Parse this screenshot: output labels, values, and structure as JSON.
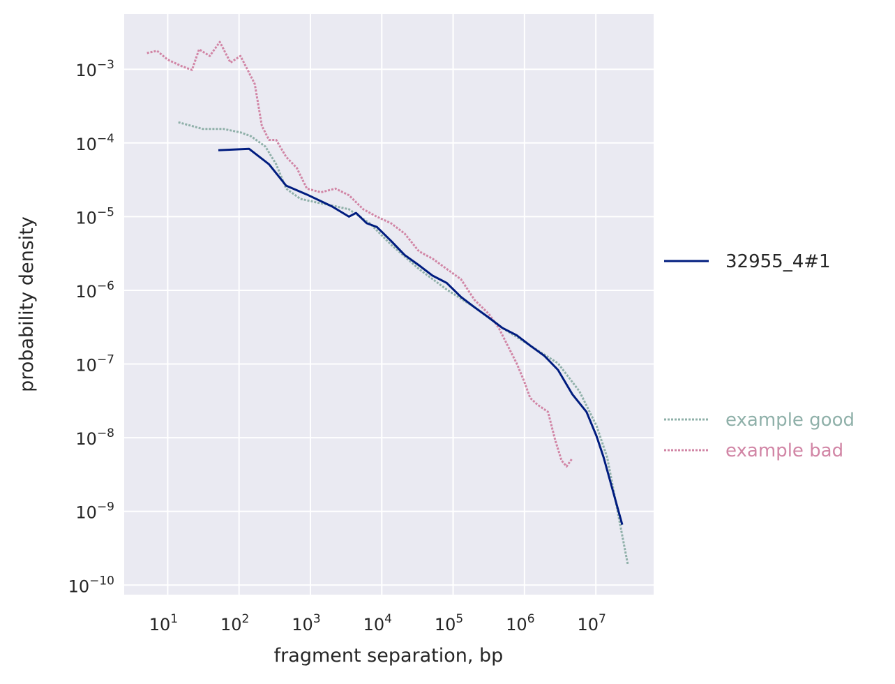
{
  "chart_data": {
    "type": "line",
    "title": "",
    "xlabel": "fragment separation, bp",
    "ylabel": "probability density",
    "x_scale": "log",
    "y_scale": "log",
    "values_note": "points given as log10 exponents",
    "xlim_log10": [
      0.39,
      7.81
    ],
    "ylim_log10": [
      -10.13,
      -2.25
    ],
    "grid": true,
    "x_ticks": [
      {
        "base": "10",
        "exp": "1"
      },
      {
        "base": "10",
        "exp": "2"
      },
      {
        "base": "10",
        "exp": "3"
      },
      {
        "base": "10",
        "exp": "4"
      },
      {
        "base": "10",
        "exp": "5"
      },
      {
        "base": "10",
        "exp": "6"
      },
      {
        "base": "10",
        "exp": "7"
      }
    ],
    "y_ticks": [
      {
        "base": "10",
        "exp": "−3"
      },
      {
        "base": "10",
        "exp": "−4"
      },
      {
        "base": "10",
        "exp": "−5"
      },
      {
        "base": "10",
        "exp": "−6"
      },
      {
        "base": "10",
        "exp": "−7"
      },
      {
        "base": "10",
        "exp": "−8"
      },
      {
        "base": "10",
        "exp": "−9"
      },
      {
        "base": "10",
        "exp": "−10"
      }
    ],
    "x_tick_values_log10": [
      1,
      2,
      3,
      4,
      5,
      6,
      7
    ],
    "y_tick_values_log10": [
      -3,
      -4,
      -5,
      -6,
      -7,
      -8,
      -9,
      -10
    ],
    "legend_placement": "right",
    "series": [
      {
        "name": "32955_4#1",
        "style": "solid",
        "color": "#001c7f",
        "log10_x": [
          1.71,
          2.14,
          2.42,
          2.66,
          2.95,
          3.3,
          3.54,
          3.64,
          3.79,
          3.93,
          4.13,
          4.32,
          4.52,
          4.71,
          4.91,
          5.11,
          5.3,
          5.5,
          5.69,
          5.89,
          6.08,
          6.28,
          6.47,
          6.67,
          6.87,
          7.01,
          7.11,
          7.37
        ],
        "log10_y": [
          -4.1,
          -4.08,
          -4.29,
          -4.58,
          -4.7,
          -4.86,
          -5.0,
          -4.95,
          -5.09,
          -5.14,
          -5.33,
          -5.52,
          -5.66,
          -5.8,
          -5.9,
          -6.09,
          -6.23,
          -6.37,
          -6.51,
          -6.61,
          -6.75,
          -6.89,
          -7.08,
          -7.41,
          -7.65,
          -7.98,
          -8.27,
          -9.18
        ]
      },
      {
        "name": "example good",
        "style": "dotted",
        "color": "#8fb0a9",
        "log10_x": [
          1.15,
          1.49,
          1.78,
          2.03,
          2.17,
          2.37,
          2.52,
          2.66,
          2.86,
          3.1,
          3.35,
          3.54,
          3.83,
          4.13,
          4.52,
          4.91,
          5.3,
          5.69,
          6.08,
          6.47,
          6.77,
          7.01,
          7.16,
          7.45
        ],
        "log10_y": [
          -3.72,
          -3.81,
          -3.81,
          -3.86,
          -3.91,
          -4.05,
          -4.29,
          -4.62,
          -4.76,
          -4.81,
          -4.86,
          -4.9,
          -5.09,
          -5.38,
          -5.71,
          -5.99,
          -6.23,
          -6.51,
          -6.75,
          -6.99,
          -7.37,
          -7.84,
          -8.27,
          -9.73
        ]
      },
      {
        "name": "example bad",
        "style": "dotted",
        "color": "#d185a5",
        "log10_x": [
          0.71,
          0.85,
          1.0,
          1.2,
          1.34,
          1.44,
          1.59,
          1.73,
          1.88,
          2.02,
          2.12,
          2.22,
          2.32,
          2.42,
          2.52,
          2.66,
          2.81,
          2.95,
          3.15,
          3.35,
          3.54,
          3.74,
          3.93,
          4.13,
          4.32,
          4.52,
          4.71,
          4.91,
          5.11,
          5.3,
          5.5,
          5.64,
          5.79,
          5.89,
          5.99,
          6.08,
          6.18,
          6.33,
          6.43,
          6.52,
          6.59,
          6.67
        ],
        "log10_y": [
          -2.78,
          -2.75,
          -2.87,
          -2.96,
          -3.01,
          -2.73,
          -2.82,
          -2.63,
          -2.91,
          -2.82,
          -3.01,
          -3.2,
          -3.77,
          -3.96,
          -3.96,
          -4.19,
          -4.34,
          -4.62,
          -4.67,
          -4.62,
          -4.71,
          -4.9,
          -5.0,
          -5.09,
          -5.23,
          -5.47,
          -5.57,
          -5.71,
          -5.85,
          -6.13,
          -6.32,
          -6.51,
          -6.8,
          -6.99,
          -7.22,
          -7.46,
          -7.55,
          -7.65,
          -8.03,
          -8.31,
          -8.39,
          -8.28
        ]
      }
    ]
  }
}
